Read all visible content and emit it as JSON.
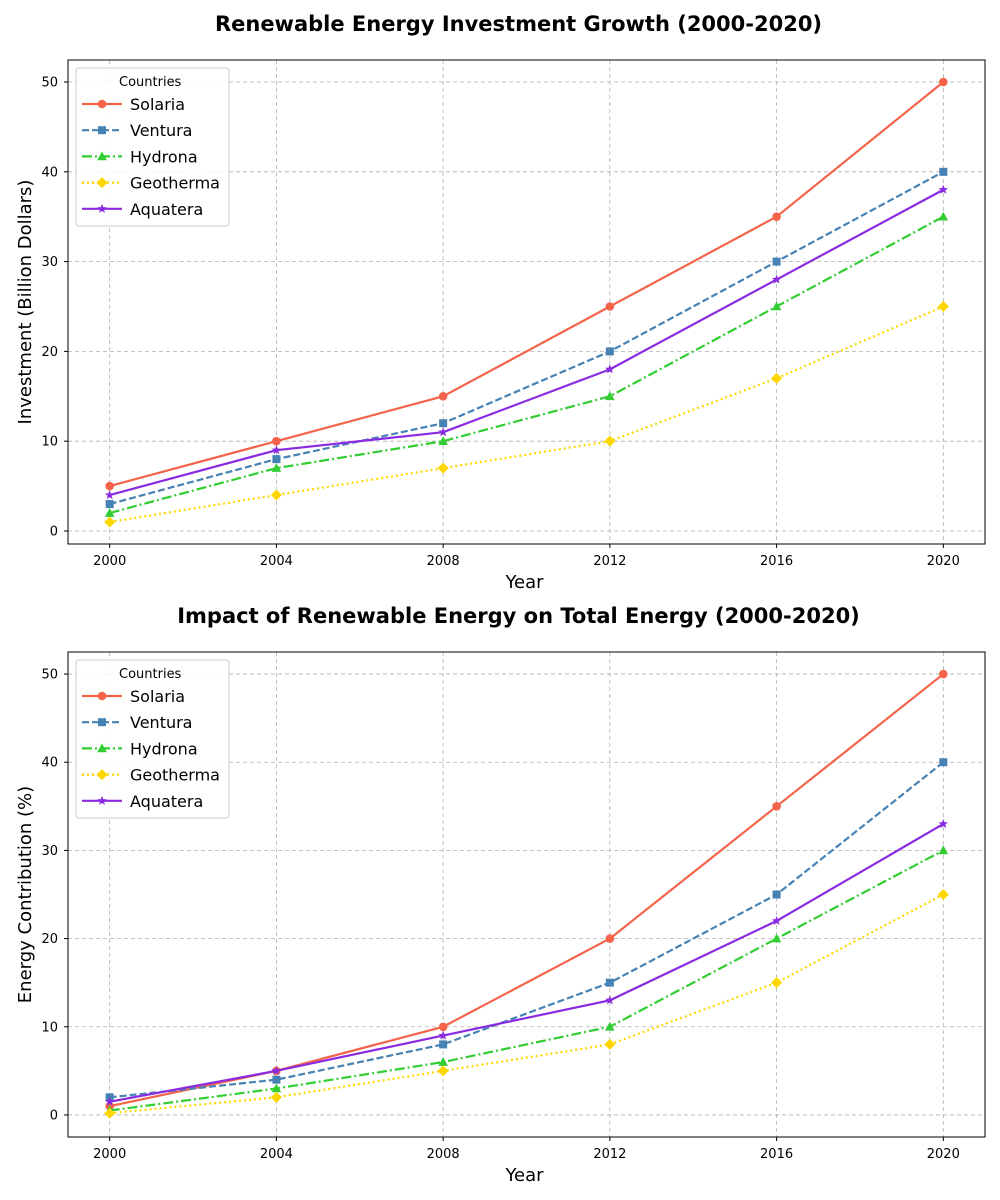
{
  "chart_data": [
    {
      "type": "line",
      "title": "Renewable Energy Investment Growth (2000-2020)",
      "xlabel": "Year",
      "ylabel": "Investment (Billion Dollars)",
      "x": [
        2000,
        2004,
        2008,
        2012,
        2016,
        2020
      ],
      "xticks": [
        "2000",
        "2004",
        "2008",
        "2012",
        "2016",
        "2020"
      ],
      "yticks": [
        "0",
        "10",
        "20",
        "30",
        "40",
        "50"
      ],
      "xlim": [
        1999,
        2021
      ],
      "ylim": [
        -1.45,
        52.45
      ],
      "grid": true,
      "legend": {
        "title": "Countries",
        "placement": "top-left"
      },
      "series": [
        {
          "name": "Solaria",
          "color": "#F4634A",
          "dash": "solid",
          "marker": "circle",
          "values": [
            5,
            10,
            15,
            25,
            35,
            50
          ]
        },
        {
          "name": "Ventura",
          "color": "#4682B4",
          "dash": "dashed",
          "marker": "square",
          "values": [
            3,
            8,
            12,
            20,
            30,
            40
          ]
        },
        {
          "name": "Hydrona",
          "color": "#32CD32",
          "dash": "dashdot",
          "marker": "triangle",
          "values": [
            2,
            7,
            10,
            15,
            25,
            35
          ]
        },
        {
          "name": "Geotherma",
          "color": "#FFD700",
          "dash": "dotted",
          "marker": "diamond",
          "values": [
            1,
            4,
            7,
            10,
            17,
            25
          ]
        },
        {
          "name": "Aquatera",
          "color": "#8A2BE2",
          "dash": "solid",
          "marker": "star",
          "values": [
            4,
            9,
            11,
            18,
            28,
            38
          ]
        }
      ]
    },
    {
      "type": "line",
      "title": "Impact of Renewable Energy on Total Energy (2000-2020)",
      "xlabel": "Year",
      "ylabel": "Energy Contribution (%)",
      "x": [
        2000,
        2004,
        2008,
        2012,
        2016,
        2020
      ],
      "xticks": [
        "2000",
        "2004",
        "2008",
        "2012",
        "2016",
        "2020"
      ],
      "yticks": [
        "0",
        "10",
        "20",
        "30",
        "40",
        "50"
      ],
      "xlim": [
        1999,
        2021
      ],
      "ylim": [
        -2.5,
        52.5
      ],
      "grid": true,
      "legend": {
        "title": "Countries",
        "placement": "top-left"
      },
      "series": [
        {
          "name": "Solaria",
          "color": "#F4634A",
          "dash": "solid",
          "marker": "circle",
          "values": [
            1,
            5,
            10,
            20,
            35,
            50
          ]
        },
        {
          "name": "Ventura",
          "color": "#4682B4",
          "dash": "dashed",
          "marker": "square",
          "values": [
            2,
            4,
            8,
            15,
            25,
            40
          ]
        },
        {
          "name": "Hydrona",
          "color": "#32CD32",
          "dash": "dashdot",
          "marker": "triangle",
          "values": [
            0.5,
            3,
            6,
            10,
            20,
            30
          ]
        },
        {
          "name": "Geotherma",
          "color": "#FFD700",
          "dash": "dotted",
          "marker": "diamond",
          "values": [
            0.2,
            2,
            5,
            8,
            15,
            25
          ]
        },
        {
          "name": "Aquatera",
          "color": "#8A2BE2",
          "dash": "solid",
          "marker": "star",
          "values": [
            1.5,
            5,
            9,
            13,
            22,
            33
          ]
        }
      ]
    }
  ]
}
